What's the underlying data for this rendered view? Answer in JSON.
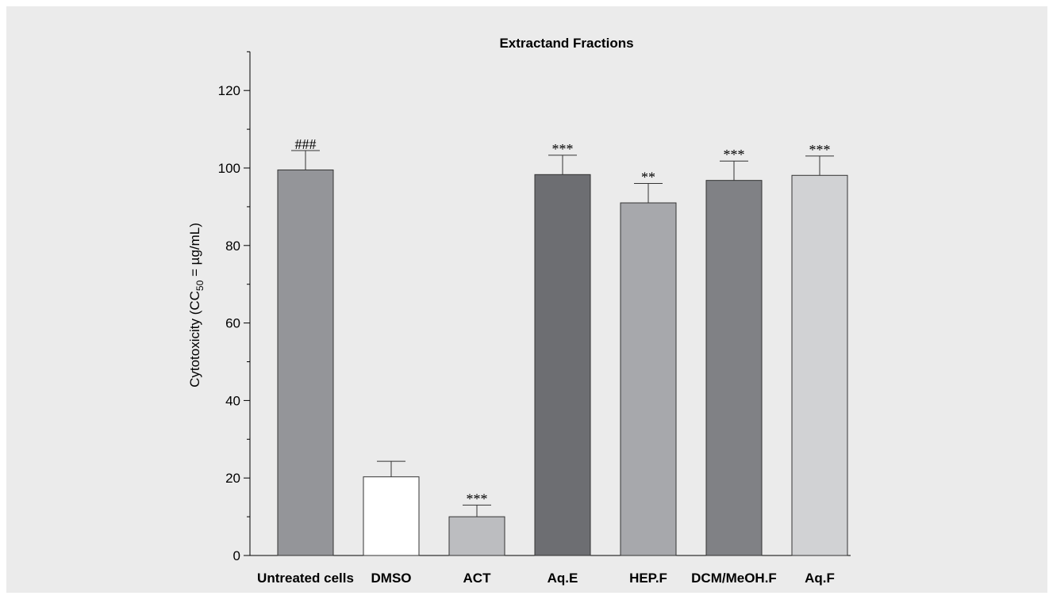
{
  "chart_data": {
    "type": "bar",
    "title": "Extractand Fractions",
    "ylabel": "Cytotoxicity (CC50 = µg/mL)",
    "ylabel_parts": {
      "pre": "Cytotoxicity (CC",
      "sub": "50",
      "post": " = µg/mL)"
    },
    "xlabel": "",
    "ylim": [
      0,
      130
    ],
    "yticks": [
      0,
      20,
      40,
      60,
      80,
      100,
      120
    ],
    "categories": [
      "Untreated cells",
      "DMSO",
      "ACT",
      "Aq.E",
      "HEP.F",
      "DCM/MeOH.F",
      "Aq.F"
    ],
    "values": [
      99.5,
      20.3,
      10.0,
      98.3,
      91.0,
      96.8,
      98.1
    ],
    "errors": [
      5.0,
      4.0,
      3.0,
      5.0,
      5.0,
      5.0,
      5.0
    ],
    "annotations": [
      "###",
      "",
      "***",
      "***",
      "**",
      "***",
      "***"
    ],
    "colors": [
      "#949599",
      "#ffffff",
      "#bcbdc0",
      "#6d6e72",
      "#a7a8ac",
      "#808185",
      "#d1d2d4"
    ],
    "grid": false,
    "legend": "none"
  }
}
